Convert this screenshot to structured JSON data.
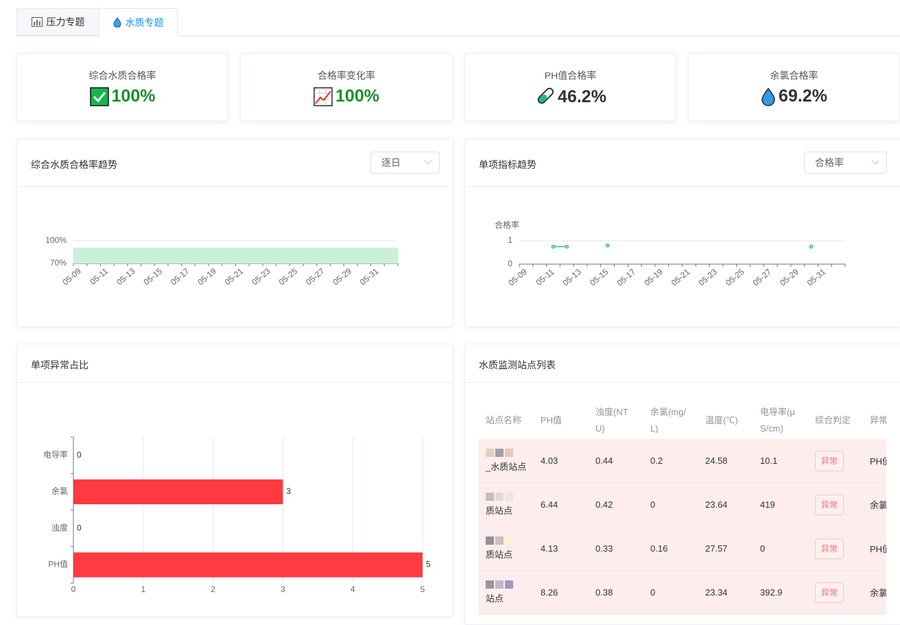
{
  "tabs": [
    "压力专题",
    "水质专题"
  ],
  "kpis": [
    {
      "label": "综合水质合格率",
      "value": "100%"
    },
    {
      "label": "合格率变化率",
      "value": "100%"
    },
    {
      "label": "PH值合格率",
      "value": "46.2%"
    },
    {
      "label": "余氯合格率",
      "value": "69.2%"
    }
  ],
  "panels": [
    {
      "title": "综合水质合格率趋势",
      "select": "逐日"
    },
    {
      "title": "单项指标趋势",
      "select": "合格率"
    },
    {
      "title": "单项异常占比"
    },
    {
      "title": "水质监测站点列表"
    }
  ],
  "chart_data": [
    {
      "type": "bar",
      "categories": [
        "05-09",
        null,
        "05-11",
        null,
        "05-13",
        null,
        "05-15",
        null,
        "05-17",
        null,
        "05-19",
        null,
        "05-21",
        null,
        "05-23",
        null,
        "05-25",
        null,
        "05-27",
        null,
        "05-29",
        null,
        "05-31",
        null
      ],
      "values": [
        91,
        91,
        91,
        91,
        91,
        91,
        91,
        91,
        91,
        91,
        91,
        91,
        91,
        91,
        91,
        91,
        91,
        91,
        91,
        91,
        91,
        91,
        91,
        91
      ],
      "color": "#c9f1d6",
      "ylim": [
        70,
        100
      ],
      "yticks": [
        {
          "value": 70,
          "label": "70%"
        },
        {
          "value": 100,
          "label": "100%"
        }
      ],
      "grid": true
    },
    {
      "type": "line",
      "y_label": "合格率",
      "categories": [
        "05-09",
        null,
        "05-11",
        null,
        "05-13",
        null,
        "05-15",
        null,
        "05-17",
        null,
        "05-19",
        null,
        "05-21",
        null,
        "05-23",
        null,
        "05-25",
        null,
        "05-27",
        null,
        "05-29",
        null,
        "05-31",
        null
      ],
      "values": [
        null,
        null,
        0.75,
        0.75,
        null,
        null,
        0.8,
        null,
        null,
        null,
        null,
        null,
        null,
        null,
        null,
        null,
        null,
        null,
        null,
        null,
        null,
        0.75,
        null,
        null
      ],
      "color": "#2bc05a",
      "ylim": [
        0,
        1
      ],
      "yticks": [
        0,
        1
      ],
      "grid": true
    },
    {
      "type": "barh",
      "categories": [
        "电导率",
        "余氯",
        "浊度",
        "PH值"
      ],
      "values": [
        0,
        3,
        0,
        5
      ],
      "color": "#ff3a40",
      "xlim": [
        0,
        5
      ],
      "xticks": [
        0,
        1,
        2,
        3,
        4,
        5
      ],
      "grid": true
    }
  ],
  "table": {
    "headers": [
      "站点名称",
      "PH值",
      "浊度(NTU)",
      "余氯(mg/L)",
      "温度(℃)",
      "电导率(μS/cm)",
      "综合判定",
      "异常"
    ],
    "rows": [
      [
        "_水质站点",
        "4.03",
        "0.44",
        "0.2",
        "24.58",
        "10.1",
        "异常",
        "PH值"
      ],
      [
        "质站点",
        "6.44",
        "0.42",
        "0",
        "23.64",
        "419",
        "异常",
        "余氯"
      ],
      [
        "质站点",
        "4.13",
        "0.33",
        "0.16",
        "27.57",
        "0",
        "异常",
        "PH值"
      ],
      [
        "站点",
        "8.26",
        "0.38",
        "0",
        "23.34",
        "392.9",
        "异常",
        "余氯"
      ]
    ]
  }
}
